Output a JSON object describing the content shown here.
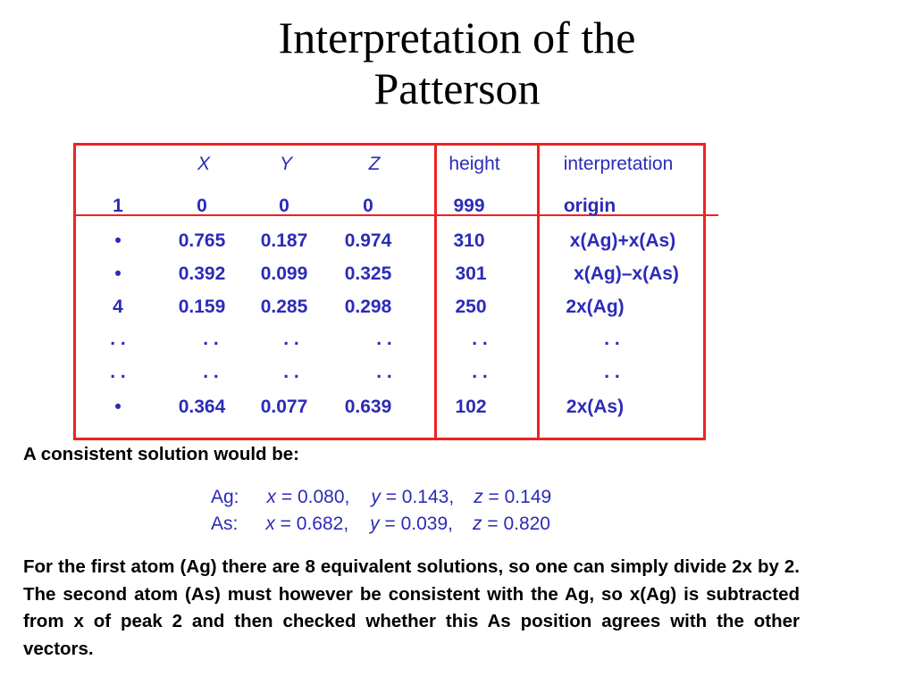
{
  "title": {
    "line1": "Interpretation of the",
    "line2": "Patterson"
  },
  "table": {
    "headers": [
      "X",
      "Y",
      "Z",
      "height",
      "interpretation"
    ],
    "rows": [
      [
        "1",
        "0",
        "0",
        "0",
        "999",
        "origin"
      ],
      [
        "•",
        "0.765",
        "0.187",
        "0.974",
        "310",
        "x(Ag)+x(As)"
      ],
      [
        "•",
        "0.392",
        "0.099",
        "0.325",
        "301",
        "x(Ag)–x(As)"
      ],
      [
        "4",
        "0.159",
        "0.285",
        "0.298",
        "250",
        "2x(Ag)"
      ],
      [
        ". .",
        ". .",
        ". .",
        ". .",
        ". .",
        ". ."
      ],
      [
        ". .",
        ". .",
        ". .",
        ". .",
        ". .",
        ". ."
      ],
      [
        "•",
        "0.364",
        "0.077",
        "0.639",
        "102",
        "2x(As)"
      ]
    ]
  },
  "solution": {
    "heading": "A consistent solution would be:",
    "ag": {
      "label": "Ag:",
      "x": "0.080,",
      "y": "0.143,",
      "z": "0.149"
    },
    "as": {
      "label": "As:",
      "x": "0.682,",
      "y": "0.039,",
      "z": "0.820"
    },
    "x_var": "x",
    "y_var": "y",
    "z_var": "z",
    "eq": " = "
  },
  "paragraph": "For the first atom (Ag) there are 8 equivalent solutions, so one can simply divide 2x by 2. The second atom (As) must however be consistent with the Ag, so x(Ag) is subtracted from x of peak 2 and then checked whether this As position agrees with the other vectors.",
  "colors": {
    "frame": "#ee2222",
    "text_blue": "#2b2bb8",
    "text_black": "#000000"
  }
}
